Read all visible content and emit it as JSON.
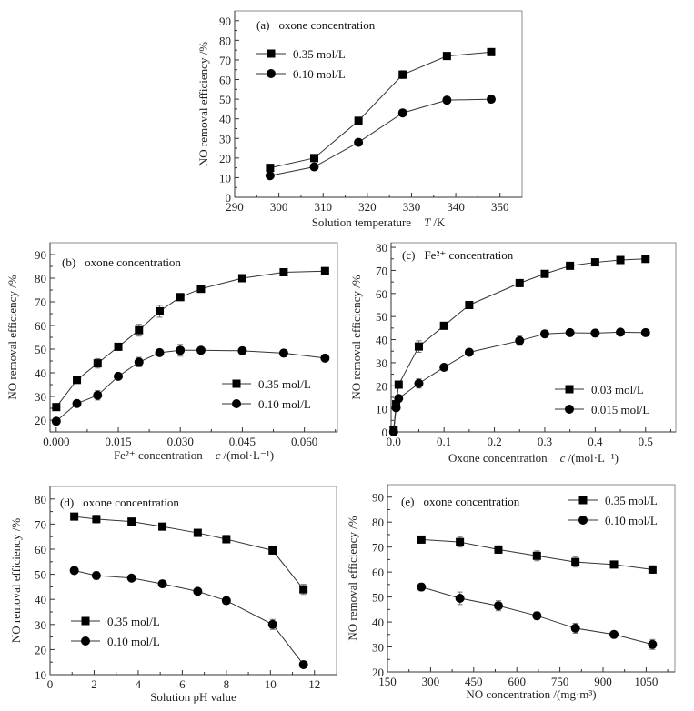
{
  "chart_data": [
    {
      "id": "a",
      "type": "line",
      "panel_label": "(a)",
      "title": "oxone concentration",
      "xlabel": "Solution temperature",
      "xlabel_var": "T",
      "xlabel_unit": "/K",
      "ylabel": "NO removal efficiency /%",
      "xlim": [
        290,
        355
      ],
      "ylim": [
        0,
        95
      ],
      "xticks": [
        290,
        300,
        310,
        320,
        330,
        340,
        350
      ],
      "yticks": [
        0,
        10,
        20,
        30,
        40,
        50,
        60,
        70,
        80,
        90
      ],
      "legend_position": "top-left",
      "series": [
        {
          "name": "0.35 mol/L",
          "marker": "square",
          "x": [
            298,
            308,
            318,
            328,
            338,
            348
          ],
          "y": [
            15,
            20,
            39,
            62.5,
            72,
            74
          ],
          "err": [
            1.5,
            1,
            1,
            2,
            1,
            1.5
          ]
        },
        {
          "name": "0.10 mol/L",
          "marker": "circle",
          "x": [
            298,
            308,
            318,
            328,
            338,
            348
          ],
          "y": [
            11,
            15.5,
            28,
            43,
            49.5,
            50
          ],
          "err": [
            1,
            1,
            1,
            1.5,
            1,
            1
          ]
        }
      ]
    },
    {
      "id": "b",
      "type": "line",
      "panel_label": "(b)",
      "title": "oxone concentration",
      "xlabel": "Fe²⁺ concentration",
      "xlabel_var": "c",
      "xlabel_unit": "/(mol·L⁻¹)",
      "ylabel": "NO removal efficiency /%",
      "xlim": [
        -0.0015,
        0.068
      ],
      "ylim": [
        15,
        95
      ],
      "xticks": [
        0.0,
        0.015,
        0.03,
        0.045,
        0.06
      ],
      "xticklabels": [
        "0.000",
        "0.015",
        "0.030",
        "0.045",
        "0.060"
      ],
      "yticks": [
        20,
        30,
        40,
        50,
        60,
        70,
        80,
        90
      ],
      "legend_position": "bottom-right",
      "series": [
        {
          "name": "0.35 mol/L",
          "marker": "square",
          "x": [
            0,
            0.005,
            0.01,
            0.015,
            0.02,
            0.025,
            0.03,
            0.035,
            0.045,
            0.055,
            0.065
          ],
          "y": [
            25.5,
            37,
            44,
            51,
            58,
            66,
            72,
            75.5,
            80,
            82.5,
            83
          ],
          "err": [
            1,
            1,
            2,
            1,
            2.5,
            2.5,
            1.5,
            1,
            1,
            1,
            1.5
          ]
        },
        {
          "name": "0.10 mol/L",
          "marker": "circle",
          "x": [
            0,
            0.005,
            0.01,
            0.015,
            0.02,
            0.025,
            0.03,
            0.035,
            0.045,
            0.055,
            0.065
          ],
          "y": [
            19.5,
            27,
            30.5,
            38.5,
            44.5,
            48.5,
            49.5,
            49.5,
            49.3,
            48.3,
            46.2
          ],
          "err": [
            1,
            1,
            2,
            1,
            2,
            1,
            2.5,
            1,
            1,
            1.5,
            1.5
          ]
        }
      ]
    },
    {
      "id": "c",
      "type": "line",
      "panel_label": "(c)",
      "title": "Fe²⁺ concentration",
      "xlabel": "Oxone concentration",
      "xlabel_var": "c",
      "xlabel_unit": "/(mol·L⁻¹)",
      "ylabel": "NO removal efficiency /%",
      "xlim": [
        -0.005,
        0.56
      ],
      "ylim": [
        0,
        82
      ],
      "xticks": [
        0.0,
        0.1,
        0.2,
        0.3,
        0.4,
        0.5
      ],
      "xticklabels": [
        "0.0",
        "0.1",
        "0.2",
        "0.3",
        "0.4",
        "0.5"
      ],
      "yticks": [
        0,
        10,
        20,
        30,
        40,
        50,
        60,
        70,
        80
      ],
      "legend_position": "bottom-right",
      "series": [
        {
          "name": "0.03 mol/L",
          "marker": "square",
          "x": [
            0,
            0.005,
            0.01,
            0.05,
            0.1,
            0.15,
            0.25,
            0.3,
            0.35,
            0.4,
            0.45,
            0.5
          ],
          "y": [
            1,
            12,
            20.5,
            37,
            46,
            55,
            64.5,
            68.5,
            72,
            73.5,
            74.5,
            75
          ],
          "err": [
            0.5,
            1.5,
            1,
            2.5,
            1,
            1.5,
            1.5,
            1,
            1,
            1,
            1,
            1.5
          ]
        },
        {
          "name": "0.015 mol/L",
          "marker": "circle",
          "x": [
            0,
            0.005,
            0.01,
            0.05,
            0.1,
            0.15,
            0.25,
            0.3,
            0.35,
            0.4,
            0.45,
            0.5
          ],
          "y": [
            0,
            10.5,
            14.5,
            21,
            28,
            34.5,
            39.5,
            42.5,
            43,
            42.8,
            43.2,
            43
          ],
          "err": [
            0.5,
            1.5,
            1,
            2,
            1,
            1.5,
            2,
            1,
            1,
            1,
            1,
            1
          ]
        }
      ]
    },
    {
      "id": "d",
      "type": "line",
      "panel_label": "(d)",
      "title": "oxone concentration",
      "xlabel": "Solution pH value",
      "xlabel_var": "",
      "xlabel_unit": "",
      "ylabel": "NO removal efficiency /%",
      "xlim": [
        0,
        13
      ],
      "ylim": [
        10,
        85
      ],
      "xticks": [
        0,
        2,
        4,
        6,
        8,
        10,
        12
      ],
      "yticks": [
        10,
        20,
        30,
        40,
        50,
        60,
        70,
        80
      ],
      "legend_position": "bottom-left",
      "series": [
        {
          "name": "0.35 mol/L",
          "marker": "square",
          "x": [
            1.1,
            2.1,
            3.7,
            5.1,
            6.7,
            8.0,
            10.1,
            11.5
          ],
          "y": [
            73,
            72,
            71,
            69,
            66.5,
            64,
            59.5,
            44
          ],
          "err": [
            1,
            1.5,
            1,
            1,
            1,
            1.5,
            1.5,
            2
          ]
        },
        {
          "name": "0.10 mol/L",
          "marker": "circle",
          "x": [
            1.1,
            2.1,
            3.7,
            5.1,
            6.7,
            8.0,
            10.1,
            11.5
          ],
          "y": [
            51.5,
            49.5,
            48.5,
            46.2,
            43.2,
            39.5,
            30,
            14
          ],
          "err": [
            1,
            1.5,
            1,
            1,
            1,
            1,
            2,
            1
          ]
        }
      ]
    },
    {
      "id": "e",
      "type": "line",
      "panel_label": "(e)",
      "title": "oxone concentration",
      "xlabel": "NO concentration /(mg·m³)",
      "xlabel_var": "",
      "xlabel_unit": "",
      "ylabel": "NO removal efficiency /%",
      "xlim": [
        150,
        1150
      ],
      "ylim": [
        20,
        95
      ],
      "xticks": [
        150,
        300,
        450,
        600,
        750,
        900,
        1050
      ],
      "yticks": [
        20,
        30,
        40,
        50,
        60,
        70,
        80,
        90
      ],
      "legend_position": "top-right",
      "series": [
        {
          "name": "0.35 mol/L",
          "marker": "square",
          "x": [
            268,
            402,
            536,
            670,
            804,
            938,
            1072
          ],
          "y": [
            73,
            72,
            69,
            66.5,
            64,
            63,
            61
          ],
          "err": [
            1,
            2,
            1.5,
            2,
            2,
            1,
            1.5
          ]
        },
        {
          "name": "0.10 mol/L",
          "marker": "circle",
          "x": [
            268,
            402,
            536,
            670,
            804,
            938,
            1072
          ],
          "y": [
            54,
            49.5,
            46.5,
            42.5,
            37.5,
            35,
            31
          ],
          "err": [
            1.5,
            2.5,
            2,
            1.5,
            2,
            1,
            2
          ]
        }
      ]
    }
  ]
}
